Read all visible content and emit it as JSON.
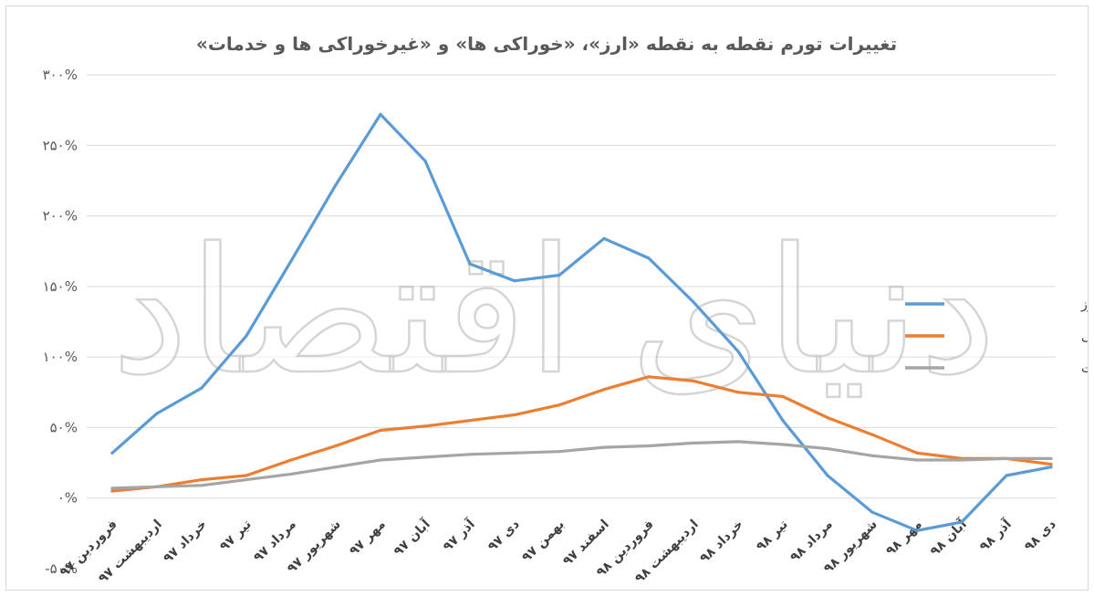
{
  "chart_data": {
    "type": "line",
    "title": "تغییرات تورم نقطه به نقطه «ارز»، «خوراکی ها» و «غیرخوراکی ها و خدمات»",
    "xlabel": "",
    "ylabel": "",
    "ylim": [
      -50,
      300
    ],
    "yticks": [
      -50,
      0,
      50,
      100,
      150,
      200,
      250,
      300
    ],
    "ytick_labels": [
      "-۵۰%",
      "۰%",
      "۵۰%",
      "۱۰۰%",
      "۱۵۰%",
      "۲۰۰%",
      "۲۵۰%",
      "۳۰۰%"
    ],
    "grid": true,
    "legend_position": "right",
    "categories": [
      "فروردین ۹۷",
      "اردیبهشت ۹۷",
      "خرداد ۹۷",
      "تیر ۹۷",
      "مرداد ۹۷",
      "شهریور ۹۷",
      "مهر ۹۷",
      "آبان ۹۷",
      "آذر ۹۷",
      "دی ۹۷",
      "بهمن ۹۷",
      "اسفند ۹۷",
      "فروردین ۹۸",
      "اردیبهشت ۹۸",
      "خرداد ۹۸",
      "تیر ۹۸",
      "مرداد ۹۸",
      "شهریور ۹۸",
      "مهر ۹۸",
      "آبان ۹۸",
      "آذر ۹۸",
      "دی ۹۸"
    ],
    "series": [
      {
        "name": "نرخ ارز",
        "color": "#5b9bd5",
        "values": [
          32,
          60,
          78,
          115,
          168,
          222,
          272,
          239,
          166,
          154,
          158,
          184,
          170,
          139,
          104,
          55,
          16,
          -10,
          -23,
          -17,
          16,
          22
        ]
      },
      {
        "name": "خوراکی",
        "color": "#ed7d31",
        "values": [
          5,
          8,
          13,
          16,
          27,
          37,
          48,
          51,
          55,
          59,
          66,
          77,
          86,
          83,
          75,
          72,
          57,
          45,
          32,
          28,
          28,
          24
        ]
      },
      {
        "name": "غیرخوراکی و خدمات",
        "color": "#a5a5a5",
        "values": [
          7,
          8,
          9,
          13,
          17,
          22,
          27,
          29,
          31,
          32,
          33,
          36,
          37,
          39,
          40,
          38,
          35,
          30,
          27,
          27,
          28,
          28
        ]
      }
    ]
  },
  "watermark": {
    "text": "دنیای اقتصاد"
  }
}
